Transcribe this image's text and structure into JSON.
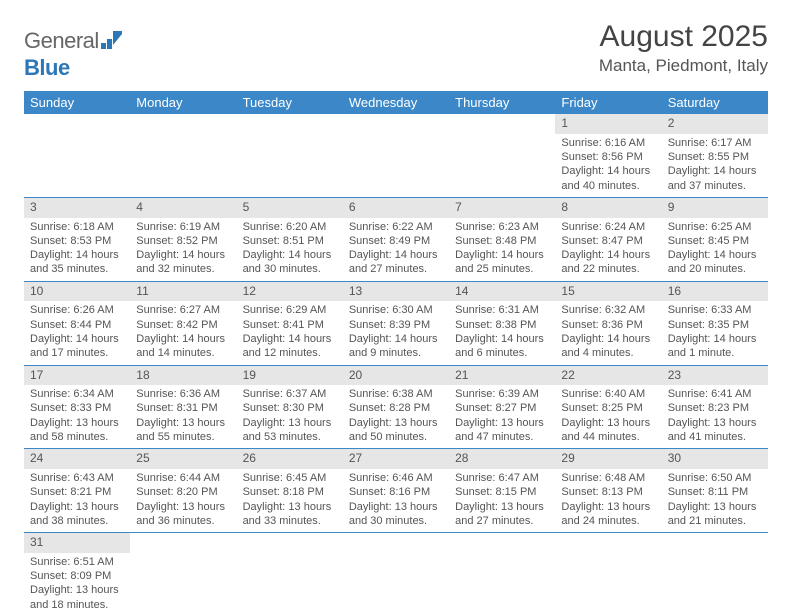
{
  "logo": {
    "general": "General",
    "blue": "Blue"
  },
  "title": "August 2025",
  "location": "Manta, Piedmont, Italy",
  "colors": {
    "header_bg": "#3b87c8",
    "header_text": "#ffffff",
    "daynum_bg": "#e6e6e6",
    "border": "#3b87c8",
    "text": "#555555",
    "logo_blue": "#2c77b8"
  },
  "weekdays": [
    "Sunday",
    "Monday",
    "Tuesday",
    "Wednesday",
    "Thursday",
    "Friday",
    "Saturday"
  ],
  "weeks": [
    [
      null,
      null,
      null,
      null,
      null,
      {
        "n": "1",
        "sr": "Sunrise: 6:16 AM",
        "ss": "Sunset: 8:56 PM",
        "dl": "Daylight: 14 hours and 40 minutes."
      },
      {
        "n": "2",
        "sr": "Sunrise: 6:17 AM",
        "ss": "Sunset: 8:55 PM",
        "dl": "Daylight: 14 hours and 37 minutes."
      }
    ],
    [
      {
        "n": "3",
        "sr": "Sunrise: 6:18 AM",
        "ss": "Sunset: 8:53 PM",
        "dl": "Daylight: 14 hours and 35 minutes."
      },
      {
        "n": "4",
        "sr": "Sunrise: 6:19 AM",
        "ss": "Sunset: 8:52 PM",
        "dl": "Daylight: 14 hours and 32 minutes."
      },
      {
        "n": "5",
        "sr": "Sunrise: 6:20 AM",
        "ss": "Sunset: 8:51 PM",
        "dl": "Daylight: 14 hours and 30 minutes."
      },
      {
        "n": "6",
        "sr": "Sunrise: 6:22 AM",
        "ss": "Sunset: 8:49 PM",
        "dl": "Daylight: 14 hours and 27 minutes."
      },
      {
        "n": "7",
        "sr": "Sunrise: 6:23 AM",
        "ss": "Sunset: 8:48 PM",
        "dl": "Daylight: 14 hours and 25 minutes."
      },
      {
        "n": "8",
        "sr": "Sunrise: 6:24 AM",
        "ss": "Sunset: 8:47 PM",
        "dl": "Daylight: 14 hours and 22 minutes."
      },
      {
        "n": "9",
        "sr": "Sunrise: 6:25 AM",
        "ss": "Sunset: 8:45 PM",
        "dl": "Daylight: 14 hours and 20 minutes."
      }
    ],
    [
      {
        "n": "10",
        "sr": "Sunrise: 6:26 AM",
        "ss": "Sunset: 8:44 PM",
        "dl": "Daylight: 14 hours and 17 minutes."
      },
      {
        "n": "11",
        "sr": "Sunrise: 6:27 AM",
        "ss": "Sunset: 8:42 PM",
        "dl": "Daylight: 14 hours and 14 minutes."
      },
      {
        "n": "12",
        "sr": "Sunrise: 6:29 AM",
        "ss": "Sunset: 8:41 PM",
        "dl": "Daylight: 14 hours and 12 minutes."
      },
      {
        "n": "13",
        "sr": "Sunrise: 6:30 AM",
        "ss": "Sunset: 8:39 PM",
        "dl": "Daylight: 14 hours and 9 minutes."
      },
      {
        "n": "14",
        "sr": "Sunrise: 6:31 AM",
        "ss": "Sunset: 8:38 PM",
        "dl": "Daylight: 14 hours and 6 minutes."
      },
      {
        "n": "15",
        "sr": "Sunrise: 6:32 AM",
        "ss": "Sunset: 8:36 PM",
        "dl": "Daylight: 14 hours and 4 minutes."
      },
      {
        "n": "16",
        "sr": "Sunrise: 6:33 AM",
        "ss": "Sunset: 8:35 PM",
        "dl": "Daylight: 14 hours and 1 minute."
      }
    ],
    [
      {
        "n": "17",
        "sr": "Sunrise: 6:34 AM",
        "ss": "Sunset: 8:33 PM",
        "dl": "Daylight: 13 hours and 58 minutes."
      },
      {
        "n": "18",
        "sr": "Sunrise: 6:36 AM",
        "ss": "Sunset: 8:31 PM",
        "dl": "Daylight: 13 hours and 55 minutes."
      },
      {
        "n": "19",
        "sr": "Sunrise: 6:37 AM",
        "ss": "Sunset: 8:30 PM",
        "dl": "Daylight: 13 hours and 53 minutes."
      },
      {
        "n": "20",
        "sr": "Sunrise: 6:38 AM",
        "ss": "Sunset: 8:28 PM",
        "dl": "Daylight: 13 hours and 50 minutes."
      },
      {
        "n": "21",
        "sr": "Sunrise: 6:39 AM",
        "ss": "Sunset: 8:27 PM",
        "dl": "Daylight: 13 hours and 47 minutes."
      },
      {
        "n": "22",
        "sr": "Sunrise: 6:40 AM",
        "ss": "Sunset: 8:25 PM",
        "dl": "Daylight: 13 hours and 44 minutes."
      },
      {
        "n": "23",
        "sr": "Sunrise: 6:41 AM",
        "ss": "Sunset: 8:23 PM",
        "dl": "Daylight: 13 hours and 41 minutes."
      }
    ],
    [
      {
        "n": "24",
        "sr": "Sunrise: 6:43 AM",
        "ss": "Sunset: 8:21 PM",
        "dl": "Daylight: 13 hours and 38 minutes."
      },
      {
        "n": "25",
        "sr": "Sunrise: 6:44 AM",
        "ss": "Sunset: 8:20 PM",
        "dl": "Daylight: 13 hours and 36 minutes."
      },
      {
        "n": "26",
        "sr": "Sunrise: 6:45 AM",
        "ss": "Sunset: 8:18 PM",
        "dl": "Daylight: 13 hours and 33 minutes."
      },
      {
        "n": "27",
        "sr": "Sunrise: 6:46 AM",
        "ss": "Sunset: 8:16 PM",
        "dl": "Daylight: 13 hours and 30 minutes."
      },
      {
        "n": "28",
        "sr": "Sunrise: 6:47 AM",
        "ss": "Sunset: 8:15 PM",
        "dl": "Daylight: 13 hours and 27 minutes."
      },
      {
        "n": "29",
        "sr": "Sunrise: 6:48 AM",
        "ss": "Sunset: 8:13 PM",
        "dl": "Daylight: 13 hours and 24 minutes."
      },
      {
        "n": "30",
        "sr": "Sunrise: 6:50 AM",
        "ss": "Sunset: 8:11 PM",
        "dl": "Daylight: 13 hours and 21 minutes."
      }
    ],
    [
      {
        "n": "31",
        "sr": "Sunrise: 6:51 AM",
        "ss": "Sunset: 8:09 PM",
        "dl": "Daylight: 13 hours and 18 minutes."
      },
      null,
      null,
      null,
      null,
      null,
      null
    ]
  ]
}
